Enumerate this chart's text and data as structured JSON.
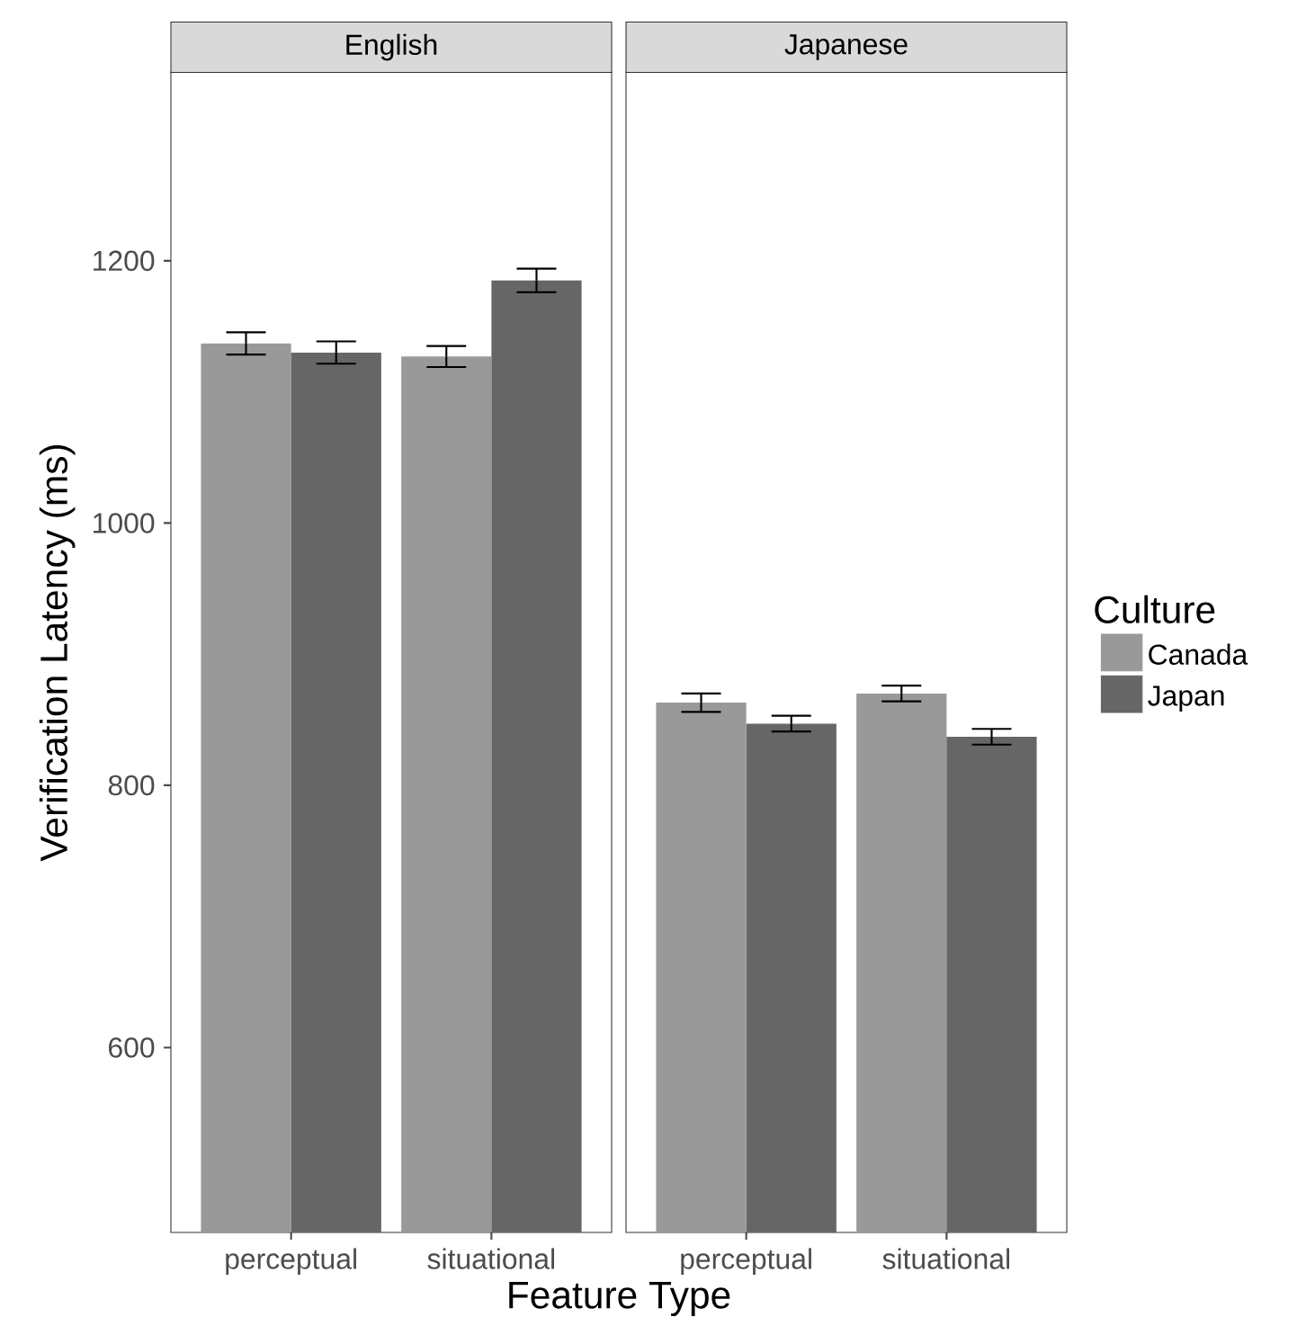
{
  "chart_data": [
    {
      "type": "bar",
      "title": "English",
      "xlabel": "Feature Type",
      "ylabel": "Verification Latency (ms)",
      "categories": [
        "perceptual",
        "situational"
      ],
      "series": [
        {
          "color": "#999999",
          "values": [
            1137,
            1127
          ],
          "errors": [
            8.5,
            8
          ]
        },
        {
          "color": "#666666",
          "values": [
            1130,
            1185
          ],
          "errors": [
            8.5,
            9
          ]
        }
      ],
      "ylim": [
        459,
        1344
      ],
      "yticks": [
        600,
        800,
        1000,
        1200
      ],
      "legend": false
    },
    {
      "type": "bar",
      "title": "Japanese",
      "legend_title": "Culture",
      "categories": [
        "perceptual",
        "situational"
      ],
      "series": [
        {
          "name": "Canada",
          "color": "#999999",
          "values": [
            863,
            870
          ],
          "errors": [
            7,
            6
          ]
        },
        {
          "name": "Japan",
          "color": "#666666",
          "values": [
            847,
            837
          ],
          "errors": [
            6,
            6
          ]
        }
      ],
      "ylim": [
        459,
        1344
      ],
      "yticks": [
        600,
        800,
        1000,
        1200
      ],
      "legend": "right",
      "tick_labels": "x"
    }
  ]
}
